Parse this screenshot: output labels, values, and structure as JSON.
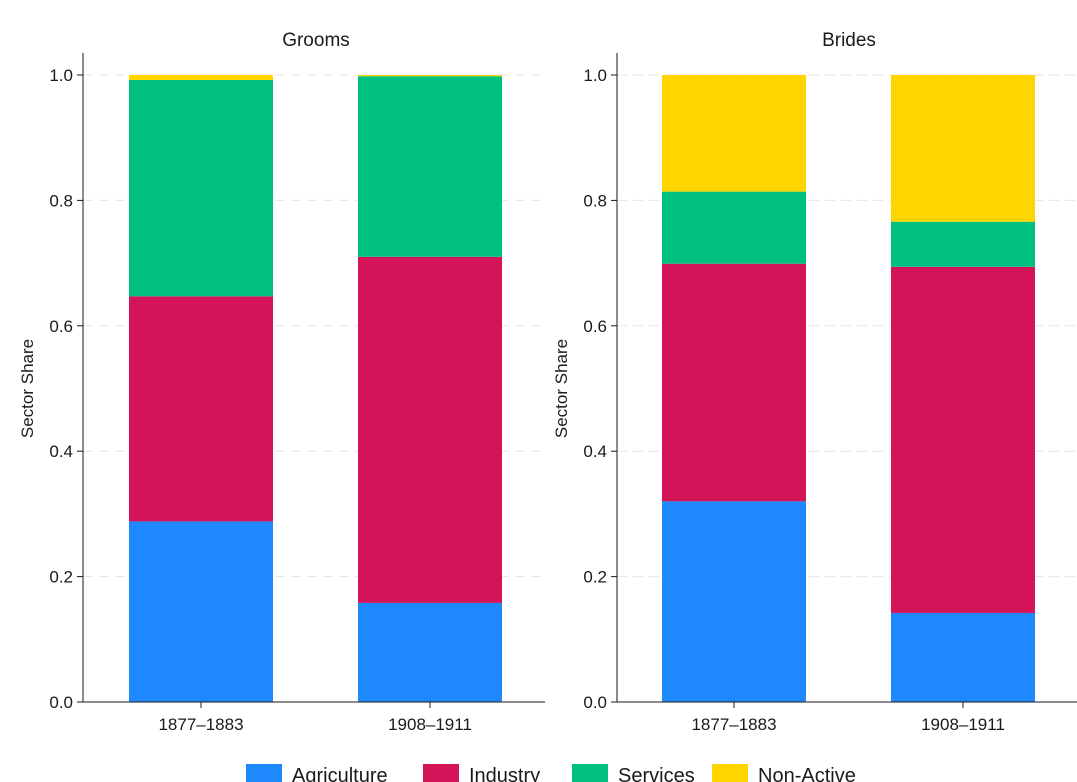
{
  "chart_data": {
    "type": "bar",
    "stacked": true,
    "ylabel": "Sector Share",
    "ylim": [
      0,
      1
    ],
    "yticks": [
      "0.0",
      "0.2",
      "0.4",
      "0.6",
      "0.8",
      "1.0"
    ],
    "ytick_values": [
      0,
      0.2,
      0.4,
      0.6,
      0.8,
      1.0
    ],
    "grid": true,
    "legend_position": "bottom",
    "series_meta": [
      {
        "name": "Agriculture",
        "color": "#1e88ff"
      },
      {
        "name": "Industry",
        "color": "#d41459"
      },
      {
        "name": "Services",
        "color": "#00c07f"
      },
      {
        "name": "Non-Active",
        "color": "#ffd500"
      }
    ],
    "panels": [
      {
        "title": "Grooms",
        "categories": [
          "1877–1883",
          "1908–1911"
        ],
        "series": [
          {
            "name": "Agriculture",
            "values": [
              0.288,
              0.158
            ]
          },
          {
            "name": "Industry",
            "values": [
              0.359,
              0.552
            ]
          },
          {
            "name": "Services",
            "values": [
              0.345,
              0.288
            ]
          },
          {
            "name": "Non-Active",
            "values": [
              0.008,
              0.002
            ]
          }
        ]
      },
      {
        "title": "Brides",
        "categories": [
          "1877–1883",
          "1908–1911"
        ],
        "series": [
          {
            "name": "Agriculture",
            "values": [
              0.32,
              0.142
            ]
          },
          {
            "name": "Industry",
            "values": [
              0.379,
              0.552
            ]
          },
          {
            "name": "Services",
            "values": [
              0.115,
              0.072
            ]
          },
          {
            "name": "Non-Active",
            "values": [
              0.186,
              0.234
            ]
          }
        ]
      }
    ]
  }
}
